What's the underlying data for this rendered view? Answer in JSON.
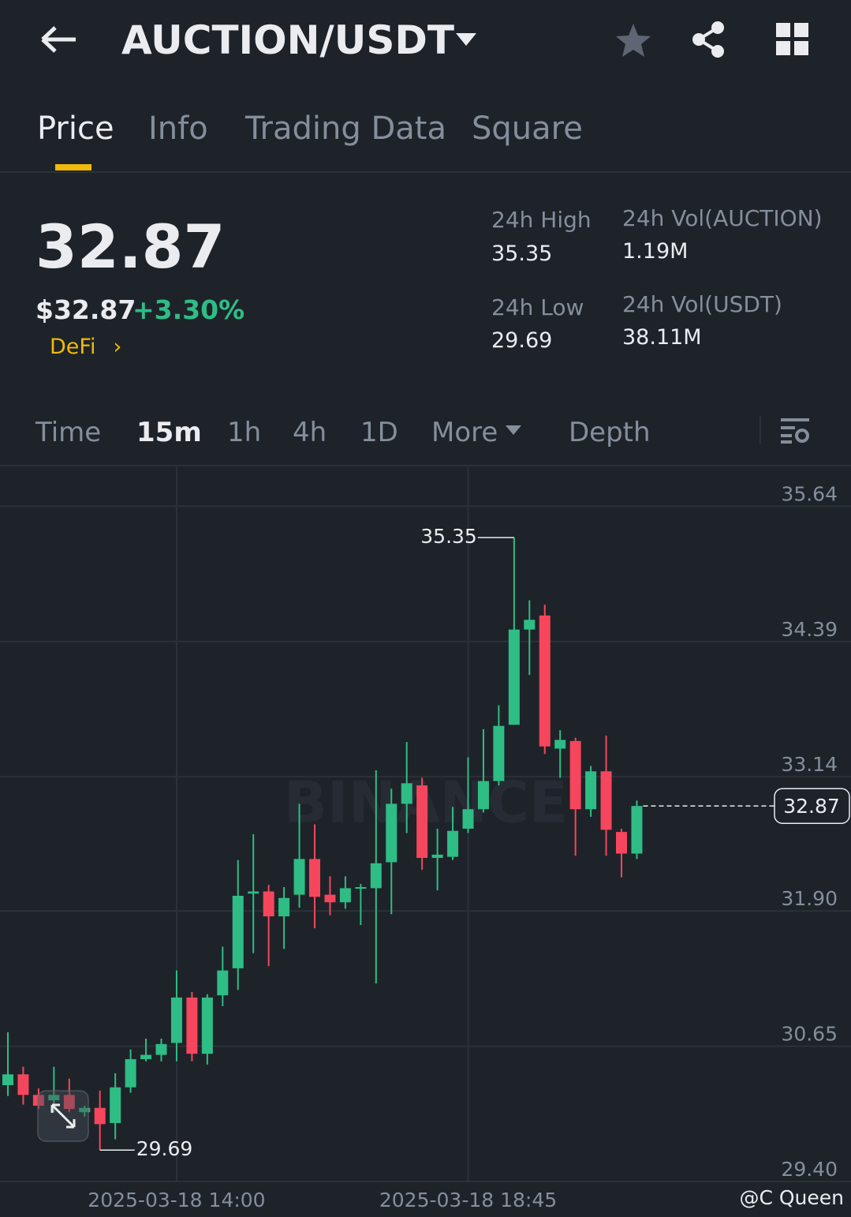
{
  "header": {
    "title": "AUCTION/USDT"
  },
  "tabs": [
    "Price",
    "Info",
    "Trading Data",
    "Square"
  ],
  "price": {
    "last": "32.87",
    "usd": "$32.87",
    "change": "+3.30%",
    "tag": "DeFi"
  },
  "stats": [
    {
      "label": "24h High",
      "value": "35.35"
    },
    {
      "label": "24h Vol(AUCTION)",
      "value": "1.19M"
    },
    {
      "label": "24h Low",
      "value": "29.69"
    },
    {
      "label": "24h Vol(USDT)",
      "value": "38.11M"
    }
  ],
  "intervals": [
    "Time",
    "15m",
    "1h",
    "4h",
    "1D",
    "More",
    "Depth"
  ],
  "credit": "@C Queen",
  "chart_data": {
    "type": "candlestick",
    "watermark": "BINANCE",
    "up_color": "#2ebd85",
    "down_color": "#f6465d",
    "grid": true,
    "ylim": [
      29.4,
      36.0
    ],
    "yticks": [
      35.64,
      34.39,
      33.14,
      {
        "value": 31.9,
        "label": "31.90"
      },
      30.65,
      {
        "value": 29.4,
        "label": "29.40"
      }
    ],
    "categories": [
      null,
      null,
      null,
      null,
      null,
      null,
      null,
      null,
      null,
      null,
      null,
      "2025-03-18 14:00",
      null,
      null,
      null,
      null,
      null,
      null,
      null,
      null,
      null,
      null,
      null,
      null,
      null,
      null,
      null,
      null,
      null,
      null,
      "2025-03-18 18:45",
      null,
      null,
      null,
      null,
      null,
      null,
      null,
      null,
      null,
      null,
      null
    ],
    "open": [
      30.29,
      30.39,
      30.2,
      30.15,
      30.2,
      30.04,
      30.08,
      29.94,
      30.27,
      30.53,
      30.57,
      30.68,
      31.1,
      30.58,
      31.12,
      31.37,
      32.06,
      32.08,
      31.85,
      32.05,
      32.38,
      32.05,
      31.98,
      32.11,
      32.11,
      32.35,
      32.89,
      33.06,
      32.39,
      32.4,
      32.66,
      32.84,
      33.1,
      33.62,
      34.5,
      34.63,
      33.4,
      33.47,
      32.84,
      33.19,
      32.63,
      32.43
    ],
    "high": [
      30.78,
      30.46,
      30.26,
      30.46,
      30.35,
      30.1,
      30.24,
      30.4,
      30.62,
      30.72,
      30.72,
      31.35,
      31.15,
      31.13,
      31.57,
      32.37,
      32.61,
      32.14,
      32.12,
      32.89,
      32.7,
      32.22,
      32.22,
      32.15,
      33.2,
      33.03,
      33.46,
      33.13,
      32.66,
      32.86,
      33.32,
      33.58,
      33.8,
      35.35,
      34.77,
      34.73,
      33.57,
      33.5,
      33.24,
      33.52,
      32.66,
      32.92
    ],
    "low": [
      30.19,
      30.11,
      30.07,
      30.04,
      30.04,
      30.0,
      29.69,
      29.79,
      30.22,
      30.51,
      30.51,
      30.51,
      30.51,
      30.48,
      31.02,
      31.17,
      31.51,
      31.39,
      31.55,
      31.93,
      31.74,
      31.86,
      31.92,
      31.77,
      31.23,
      31.87,
      32.62,
      32.28,
      32.09,
      32.37,
      32.62,
      32.81,
      33.06,
      33.62,
      34.08,
      33.35,
      33.13,
      32.41,
      32.77,
      32.41,
      32.21,
      32.38
    ],
    "close": [
      30.39,
      30.2,
      30.1,
      30.2,
      30.07,
      30.08,
      29.93,
      30.27,
      30.53,
      30.57,
      30.67,
      31.1,
      30.58,
      31.1,
      31.35,
      32.04,
      32.08,
      31.85,
      32.02,
      32.38,
      32.03,
      31.98,
      32.11,
      32.12,
      32.34,
      32.89,
      33.08,
      32.39,
      32.42,
      32.64,
      32.84,
      33.1,
      33.61,
      34.5,
      34.59,
      33.42,
      33.48,
      32.84,
      33.19,
      32.65,
      32.43,
      32.87
    ]
  }
}
